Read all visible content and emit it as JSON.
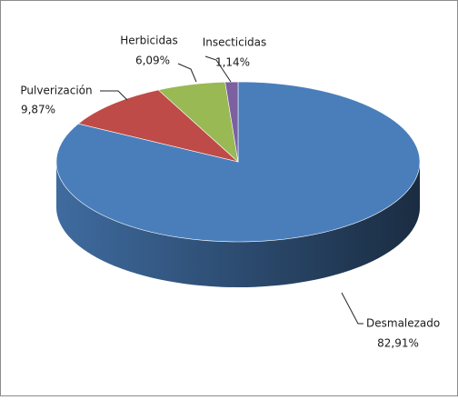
{
  "chart_data": {
    "type": "pie",
    "categories": [
      "Desmalezado",
      "Pulverización",
      "Herbicidas",
      "Insecticidas"
    ],
    "values": [
      82.91,
      9.87,
      6.09,
      1.14
    ],
    "value_labels": [
      "82,91%",
      "9,87%",
      "6,09%",
      "1,14%"
    ],
    "colors": [
      "#4a7ebb",
      "#be4b48",
      "#98b954",
      "#7d60a0"
    ]
  }
}
